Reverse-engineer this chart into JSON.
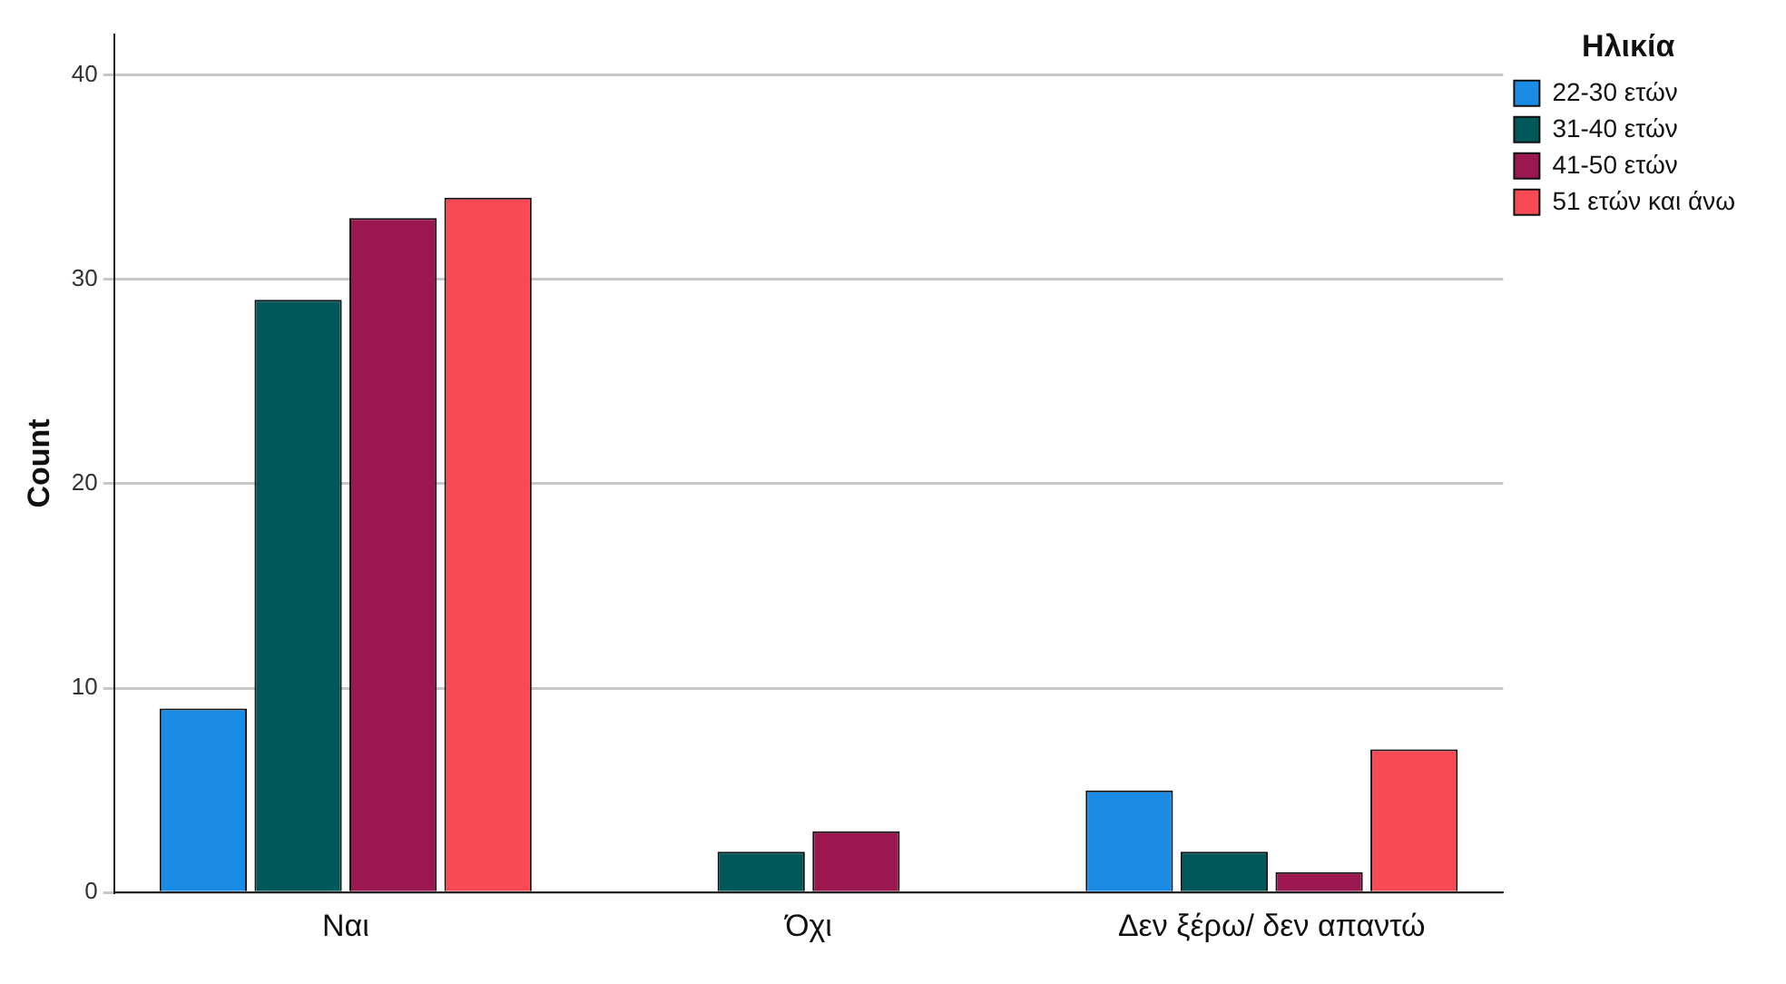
{
  "chart_data": {
    "type": "bar",
    "ylabel": "Count",
    "legend_title": "Ηλικία",
    "categories": [
      "Ναι",
      "Όχι",
      "Δεν ξέρω/ δεν απαντώ"
    ],
    "series": [
      {
        "name": "22-30 ετών",
        "color": "#1a8ce6",
        "values": [
          9,
          null,
          5
        ]
      },
      {
        "name": "31-40 ετών",
        "color": "#00585a",
        "values": [
          29,
          2,
          2
        ]
      },
      {
        "name": "41-50 ετών",
        "color": "#9b1750",
        "values": [
          33,
          3,
          1
        ]
      },
      {
        "name": "51 ετών και άνω",
        "color": "#f74a55",
        "values": [
          34,
          null,
          7
        ]
      }
    ],
    "ylim": [
      0,
      42
    ],
    "yticks": [
      0,
      10,
      20,
      30,
      40
    ],
    "grid": "y",
    "legend": "top right"
  }
}
